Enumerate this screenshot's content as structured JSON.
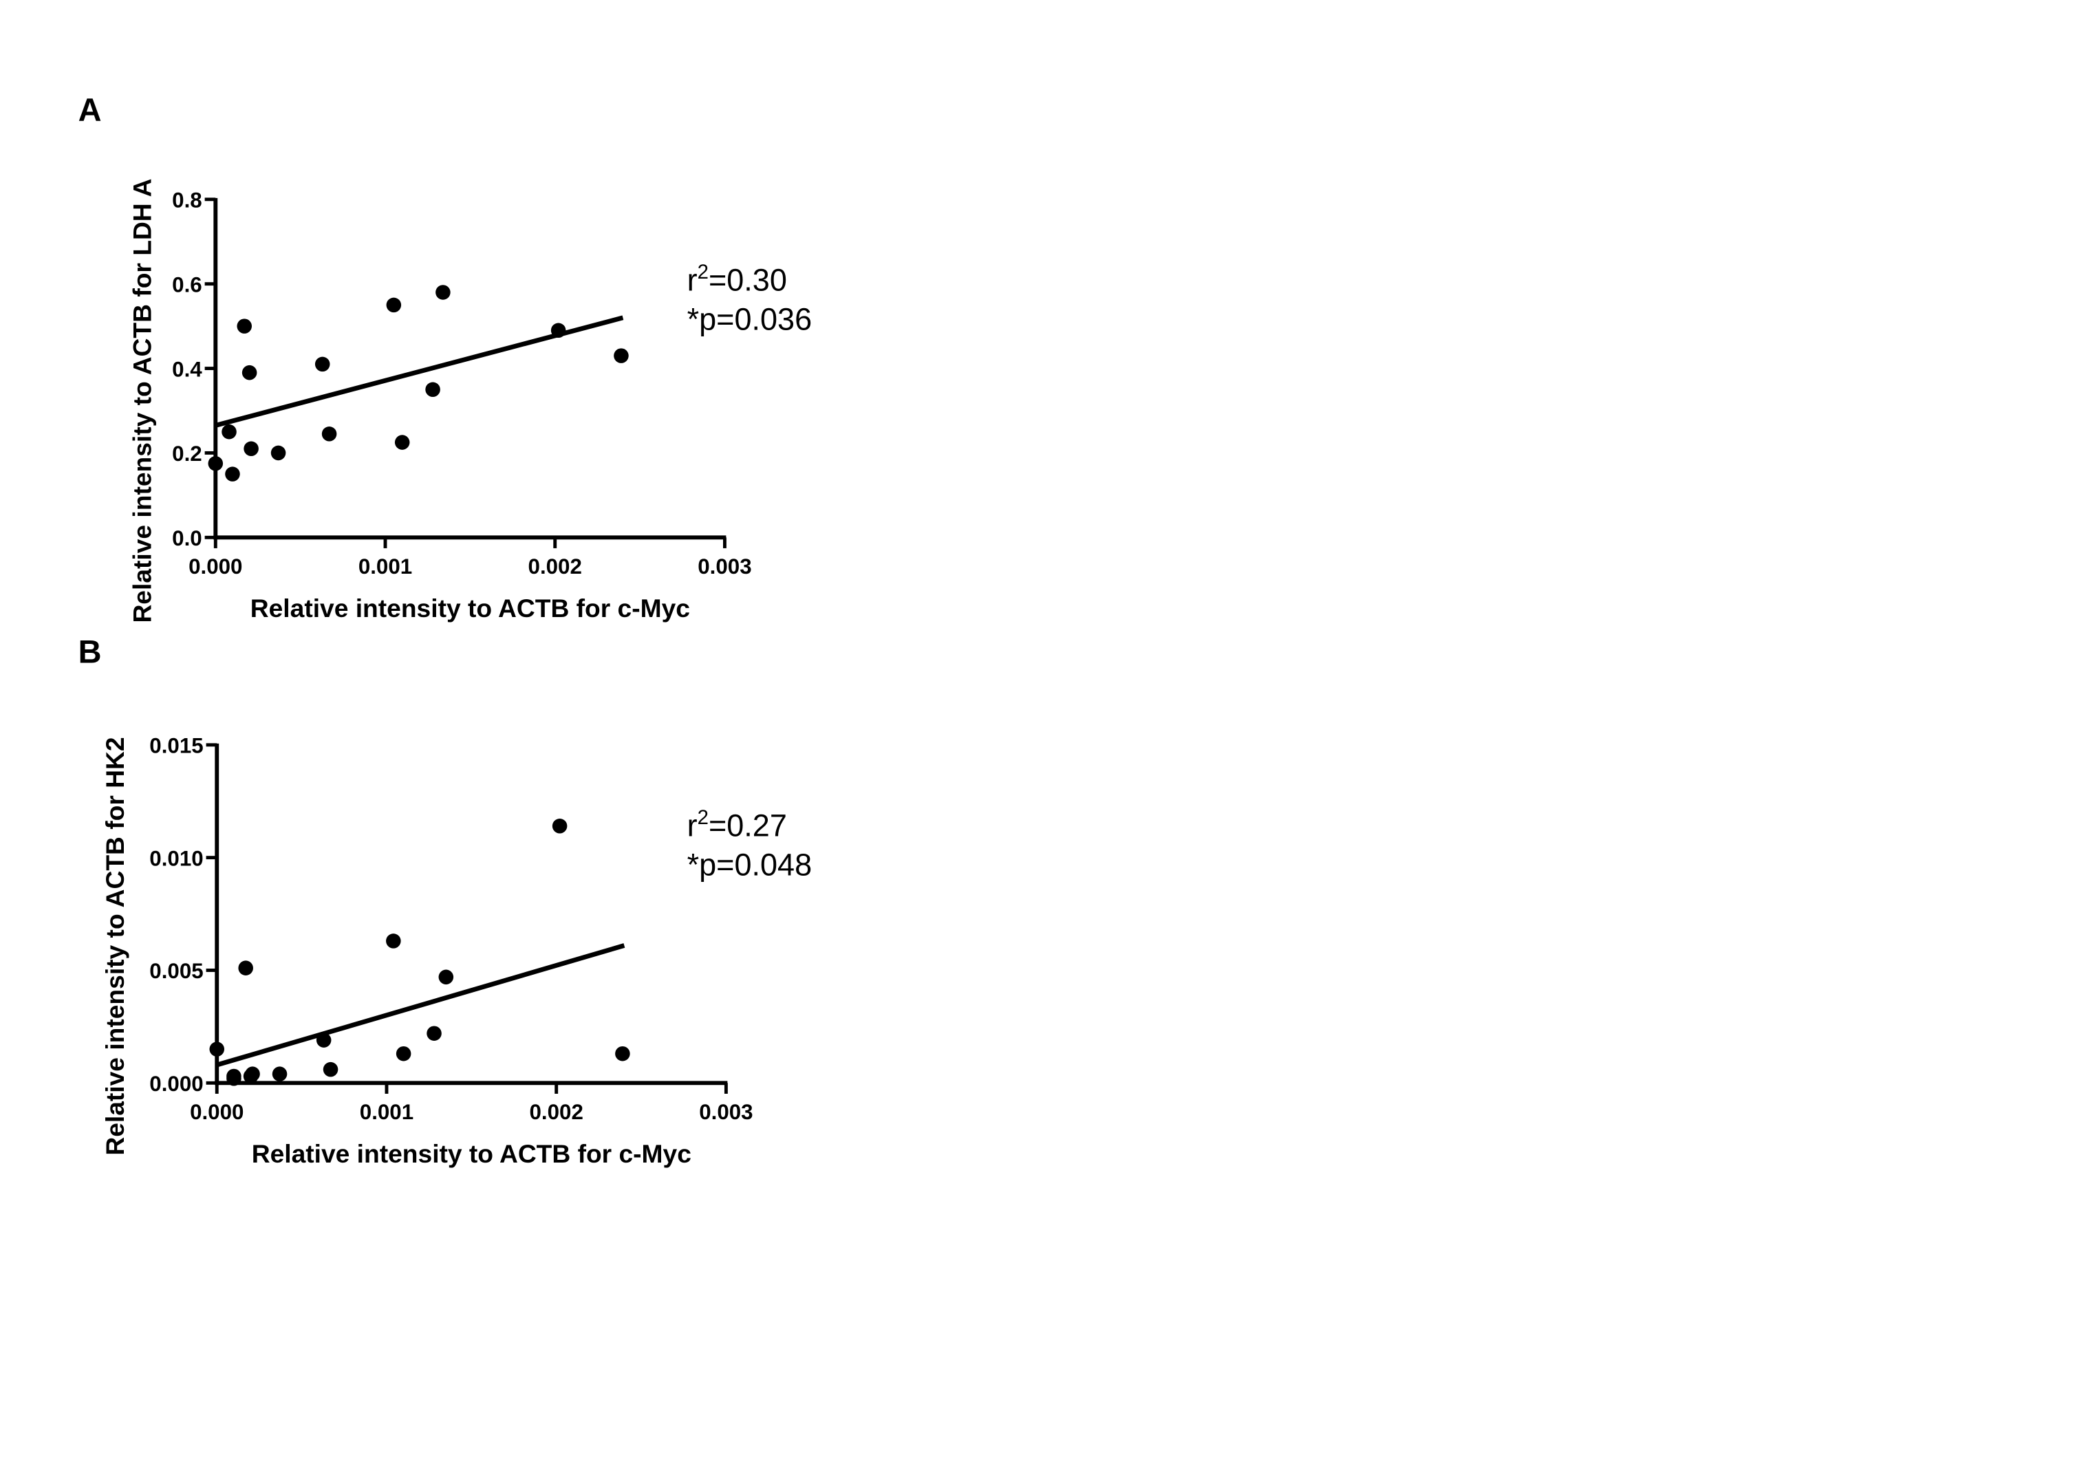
{
  "chart_data": [
    {
      "type": "scatter",
      "panel_label": "A",
      "xlabel": "Relative intensity to ACTB for c-Myc",
      "ylabel": "Relative intensity to ACTB for LDH A",
      "x": [
        0,
        8e-05,
        0.0001,
        0.00017,
        0.0002,
        0.00021,
        0.00037,
        0.00063,
        0.00067,
        0.00105,
        0.0011,
        0.00128,
        0.00134,
        0.00202,
        0.00239
      ],
      "values": [
        0.175,
        0.25,
        0.15,
        0.5,
        0.39,
        0.21,
        0.2,
        0.41,
        0.245,
        0.55,
        0.225,
        0.35,
        0.58,
        0.49,
        0.43
      ],
      "color": "#000000",
      "fit_line": {
        "x": [
          0,
          0.0024
        ],
        "y": [
          0.265,
          0.52
        ]
      },
      "r2_label": [
        "r",
        "2",
        "=0.30"
      ],
      "p_label": "*p=0.036",
      "xlim": [
        0,
        0.003
      ],
      "xticks": [
        {
          "value": 0,
          "label": "0.000"
        },
        {
          "value": 0.001,
          "label": "0.001"
        },
        {
          "value": 0.002,
          "label": "0.002"
        },
        {
          "value": 0.003,
          "label": "0.003"
        }
      ],
      "ylim": [
        0,
        0.8
      ],
      "yticks": [
        {
          "value": 0,
          "label": "0.0"
        },
        0.2,
        0.4,
        0.6,
        0.8
      ],
      "grid": false
    },
    {
      "type": "scatter",
      "panel_label": "B",
      "xlabel": "Relative intensity to ACTB for c-Myc",
      "ylabel": "Relative intensity to ACTB for HK2",
      "x": [
        0,
        0.0001,
        0.0001,
        0.00017,
        0.0002,
        0.00021,
        0.00037,
        0.00063,
        0.00067,
        0.00104,
        0.0011,
        0.00128,
        0.00135,
        0.00202,
        0.00239
      ],
      "values": [
        0.0015,
        0.0003,
        0.0002,
        0.0051,
        0.0003,
        0.0004,
        0.0004,
        0.0019,
        0.0006,
        0.0063,
        0.0013,
        0.0022,
        0.0047,
        0.0114,
        0.0013
      ],
      "color": "#000000",
      "fit_line": {
        "x": [
          0,
          0.0024
        ],
        "y": [
          0.0008,
          0.0061
        ]
      },
      "r2_label": [
        "r",
        "2",
        "=0.27"
      ],
      "p_label": "*p=0.048",
      "xlim": [
        0,
        0.003
      ],
      "xticks": [
        {
          "value": 0,
          "label": "0.000"
        },
        {
          "value": 0.001,
          "label": "0.001"
        },
        {
          "value": 0.002,
          "label": "0.002"
        },
        {
          "value": 0.003,
          "label": "0.003"
        }
      ],
      "ylim": [
        0,
        0.015
      ],
      "yticks": [
        {
          "value": 0,
          "label": "0.000"
        },
        0.005,
        {
          "value": 0.01,
          "label": "0.010"
        },
        0.015
      ],
      "grid": false
    }
  ]
}
